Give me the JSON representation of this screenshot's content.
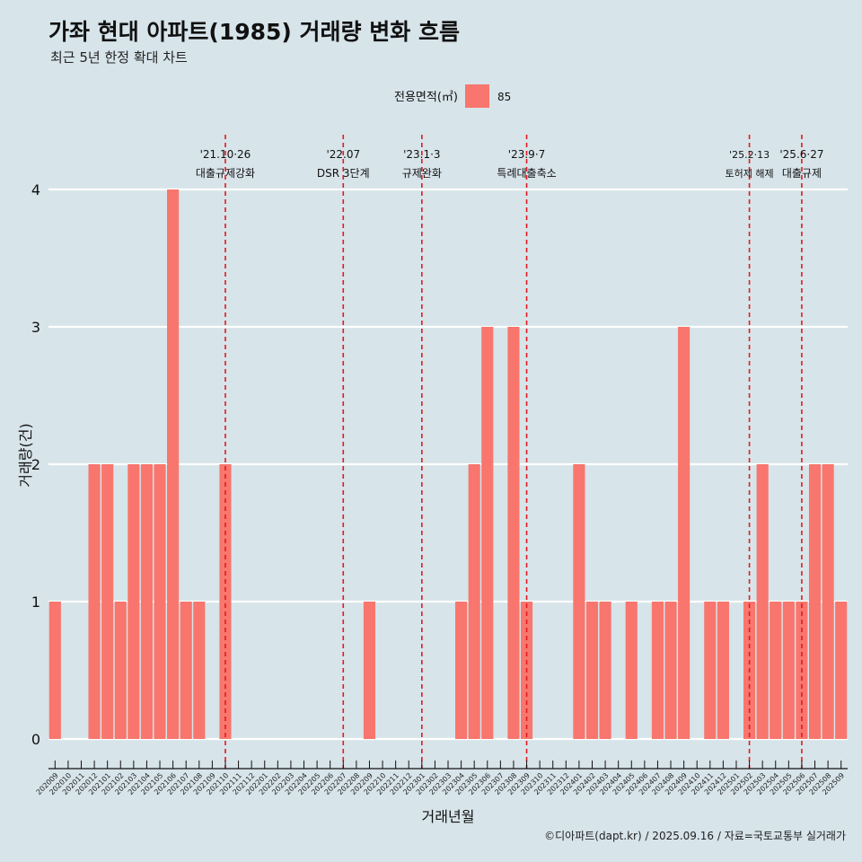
{
  "header": {
    "title": "가좌 현대 아파트(1985) 거래량 변화 흐름",
    "subtitle": "최근 5년 한정 확대 차트"
  },
  "caption": "©디아파트(dapt.kr) / 2025.09.16 / 자료=국토교통부 실거래가",
  "colors": {
    "bar": "#f8766d",
    "background": "#d7e4ea",
    "grid": "#ffffff",
    "event_line": "#e41a1c"
  },
  "chart_data": {
    "type": "bar",
    "xlabel": "거래년월",
    "ylabel": "거래량(건)",
    "ylim": [
      0,
      4
    ],
    "yticks": [
      0,
      1,
      2,
      3,
      4
    ],
    "grid": true,
    "legend": {
      "title": "전용면적(㎡)",
      "position": "top",
      "entries": [
        "85"
      ]
    },
    "categories": [
      "202009",
      "202010",
      "202011",
      "202012",
      "202101",
      "202102",
      "202103",
      "202104",
      "202105",
      "202106",
      "202107",
      "202108",
      "202109",
      "202110",
      "202111",
      "202112",
      "202201",
      "202202",
      "202203",
      "202204",
      "202205",
      "202206",
      "202207",
      "202208",
      "202209",
      "202210",
      "202211",
      "202212",
      "202301",
      "202302",
      "202303",
      "202304",
      "202305",
      "202306",
      "202307",
      "202308",
      "202309",
      "202310",
      "202311",
      "202312",
      "202401",
      "202402",
      "202403",
      "202404",
      "202405",
      "202406",
      "202407",
      "202408",
      "202409",
      "202410",
      "202411",
      "202412",
      "202501",
      "202502",
      "202503",
      "202504",
      "202505",
      "202506",
      "202507",
      "202508",
      "202509"
    ],
    "series": [
      {
        "name": "85",
        "values": [
          1,
          0,
          0,
          2,
          2,
          1,
          2,
          2,
          2,
          4,
          1,
          1,
          0,
          2,
          0,
          0,
          0,
          0,
          0,
          0,
          0,
          0,
          0,
          0,
          1,
          0,
          0,
          0,
          0,
          0,
          0,
          1,
          2,
          3,
          0,
          3,
          1,
          0,
          0,
          0,
          2,
          1,
          1,
          0,
          1,
          0,
          1,
          1,
          3,
          0,
          1,
          1,
          0,
          1,
          2,
          1,
          1,
          1,
          2,
          2,
          1
        ]
      }
    ],
    "annotations": [
      {
        "date": "'21.10·26",
        "label": "대출규제강화",
        "x_position": "202110"
      },
      {
        "date": "'22.07",
        "label": "DSR 3단계",
        "x_position": "202207"
      },
      {
        "date": "'23.1·3",
        "label": "규제완화",
        "x_position": "202301"
      },
      {
        "date": "'23.9·7",
        "label": "특례대출축소",
        "x_position": "202309"
      },
      {
        "date": "'25.2·13",
        "label": "토허제 해제",
        "x_position": "202502"
      },
      {
        "date": "'25.6·27",
        "label": "대출규제",
        "x_position": "202506"
      }
    ]
  }
}
